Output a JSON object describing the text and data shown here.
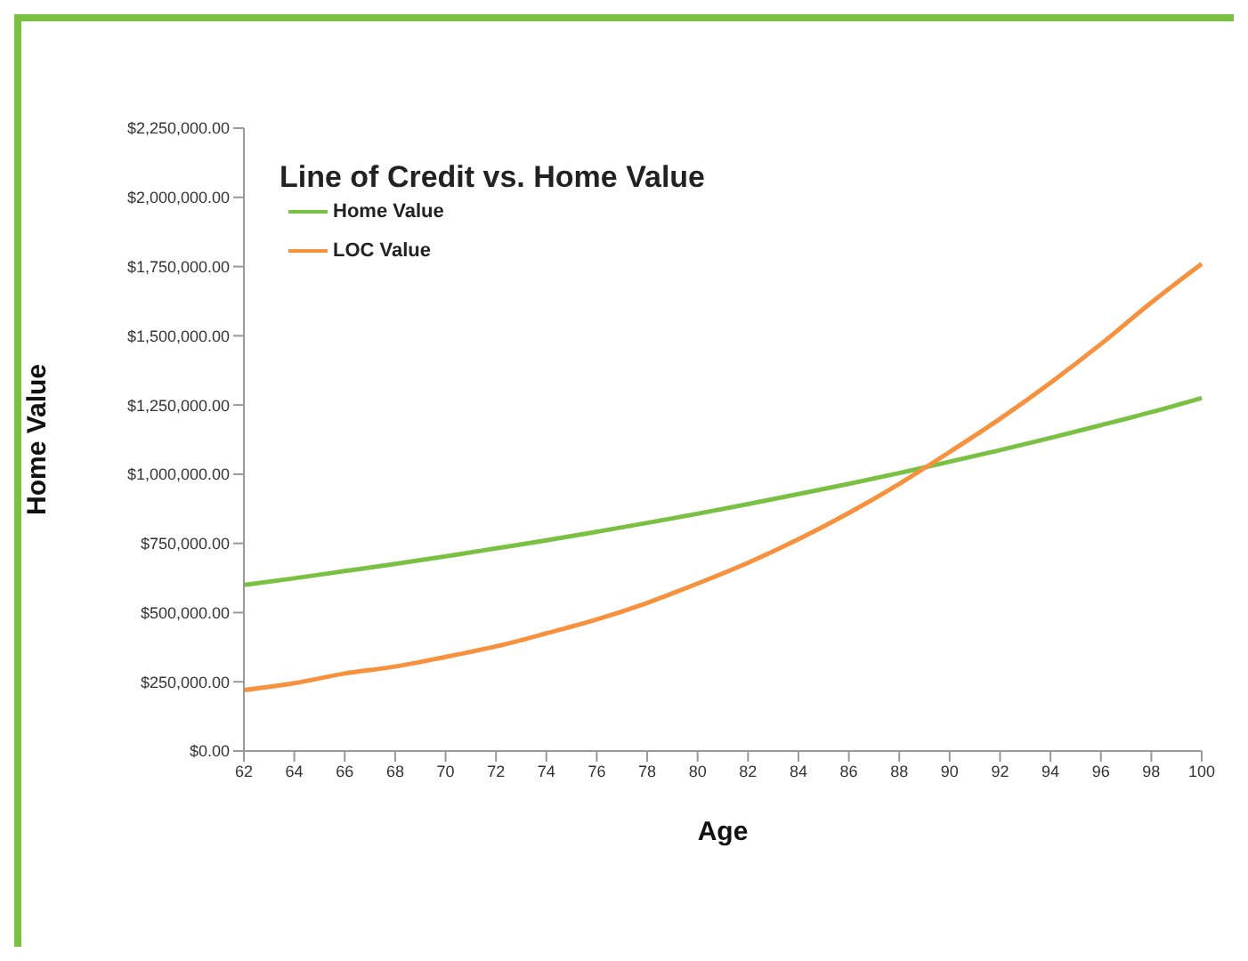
{
  "chart_data": {
    "type": "line",
    "title": "Line of Credit vs. Home Value",
    "xlabel": "Age",
    "ylabel": "Home Value",
    "categories": [
      "62",
      "64",
      "66",
      "68",
      "70",
      "72",
      "74",
      "76",
      "78",
      "80",
      "82",
      "84",
      "86",
      "88",
      "90",
      "92",
      "94",
      "96",
      "98",
      "100"
    ],
    "series": [
      {
        "name": "Home Value",
        "color": "#7ac143",
        "values": [
          600000,
          624000,
          650000,
          676000,
          703000,
          732000,
          761000,
          792000,
          824000,
          857000,
          892000,
          928000,
          965000,
          1004000,
          1045000,
          1087000,
          1131000,
          1177000,
          1224000,
          1275000
        ]
      },
      {
        "name": "LOC Value",
        "color": "#f7913d",
        "values": [
          220000,
          245000,
          280000,
          305000,
          340000,
          378000,
          425000,
          475000,
          535000,
          605000,
          680000,
          765000,
          860000,
          965000,
          1080000,
          1200000,
          1330000,
          1470000,
          1620000,
          1760000
        ]
      }
    ],
    "ylim": [
      0,
      2250000
    ],
    "yticks": [
      {
        "value": 0,
        "label": "$0.00"
      },
      {
        "value": 250000,
        "label": "$250,000.00"
      },
      {
        "value": 500000,
        "label": "$500,000.00"
      },
      {
        "value": 750000,
        "label": "$750,000.00"
      },
      {
        "value": 1000000,
        "label": "$1,000,000.00"
      },
      {
        "value": 1250000,
        "label": "$1,250,000.00"
      },
      {
        "value": 1500000,
        "label": "$1,500,000.00"
      },
      {
        "value": 1750000,
        "label": "$1,750,000.00"
      },
      {
        "value": 2000000,
        "label": "$2,000,000.00"
      },
      {
        "value": 2250000,
        "label": "$2,250,000.00"
      }
    ],
    "grid": false,
    "legend": "top left",
    "marker": "none",
    "line_style": "solid"
  }
}
